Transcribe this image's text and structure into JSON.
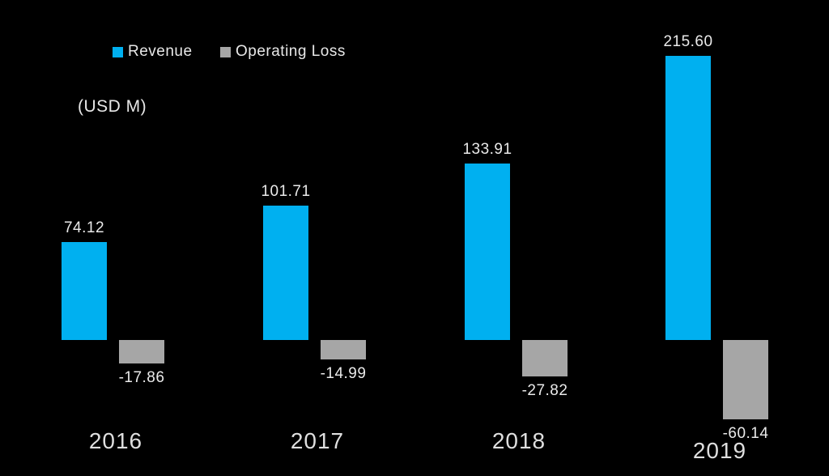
{
  "chart_data": {
    "type": "bar",
    "title": "",
    "unit_label": "(USD M)",
    "categories": [
      "2016",
      "2017",
      "2018",
      "2019"
    ],
    "series": [
      {
        "name": "Revenue",
        "color": "#00B0F0",
        "values": [
          74.12,
          101.71,
          133.91,
          215.6
        ],
        "labels": [
          "74.12",
          "101.71",
          "133.91",
          "215.60"
        ]
      },
      {
        "name": "Operating Loss",
        "color": "#A6A6A6",
        "values": [
          -17.86,
          -14.99,
          -27.82,
          -60.14
        ],
        "labels": [
          "-17.86",
          "-14.99",
          "-27.82",
          "-60.14"
        ]
      }
    ],
    "legend_position": "top-left",
    "grid": false,
    "axes_visible": false,
    "background_color": "#000000",
    "label_color": "#E8E8E8"
  }
}
